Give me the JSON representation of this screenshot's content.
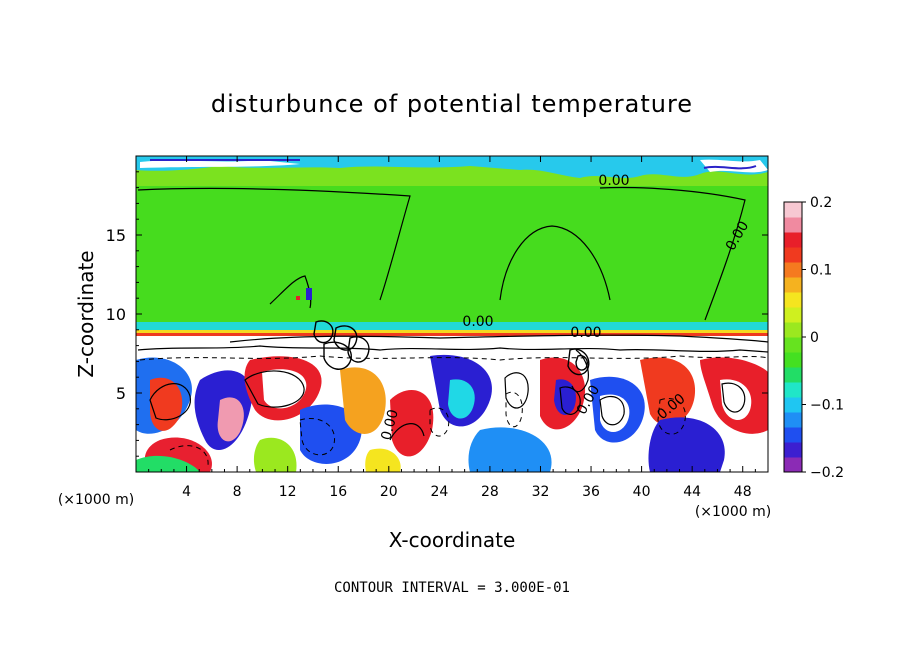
{
  "chart_data": {
    "type": "heatmap",
    "title": "disturbunce of potential temperature",
    "xlabel": "X-coordinate",
    "ylabel": "Z-coordinate",
    "x_unit": "(×1000 m)",
    "y_unit": "(×1000 m)",
    "xlim": [
      0,
      50
    ],
    "ylim": [
      0,
      20
    ],
    "x_ticks": [
      4,
      8,
      12,
      16,
      20,
      24,
      28,
      32,
      36,
      40,
      44,
      48
    ],
    "y_ticks": [
      5,
      10,
      15
    ],
    "colorbar": {
      "min": -0.2,
      "max": 0.2,
      "tick_values": [
        0.2,
        0.1,
        0,
        -0.1,
        -0.2
      ],
      "tick_labels": [
        "0.2",
        "0.1",
        "0",
        "−0.1",
        "−0.2"
      ],
      "colors": [
        "#8b2bb5",
        "#3c1fd0",
        "#1f4ff0",
        "#1f8ff5",
        "#1fc6f2",
        "#20e6c8",
        "#22dd66",
        "#44e021",
        "#66e31f",
        "#9be81f",
        "#cff01f",
        "#f5e51f",
        "#f5b21f",
        "#f57a1f",
        "#f03a1f",
        "#e81f2a",
        "#f08aa0",
        "#f7c8d2"
      ]
    },
    "contour_labels": [
      "0.00",
      "0.00",
      "0.00",
      "0.00",
      "0.00",
      "0.00",
      "0.00"
    ],
    "contour_interval": "CONTOUR INTERVAL = 3.000E-01"
  }
}
